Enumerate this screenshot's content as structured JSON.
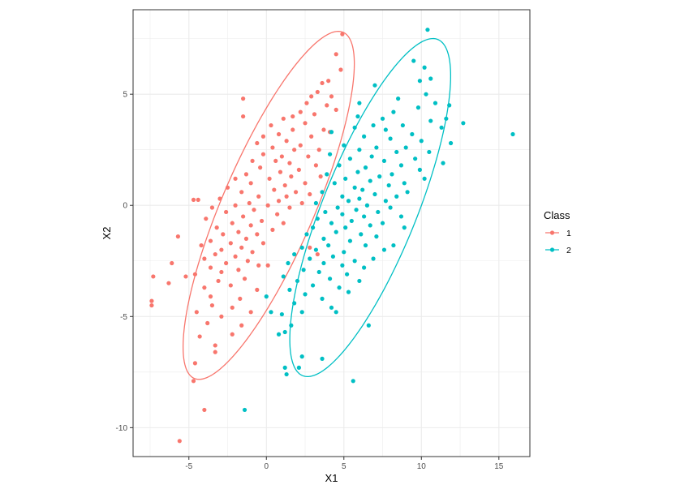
{
  "chart_data": {
    "type": "scatter",
    "xlabel": "X1",
    "ylabel": "X2",
    "xlim": [
      -8.6,
      17.0
    ],
    "ylim": [
      -11.3,
      8.8
    ],
    "x_ticks": [
      -5,
      0,
      5,
      10,
      15
    ],
    "y_ticks": [
      -10,
      -5,
      0,
      5
    ],
    "x_tick_labels": [
      "-5",
      "0",
      "5",
      "10",
      "15"
    ],
    "y_tick_labels": [
      "-10",
      "-5",
      "0",
      "5"
    ],
    "grid": true,
    "legend": {
      "title": "Class",
      "placement": "right",
      "entries": [
        "1",
        "2"
      ]
    },
    "ellipse_note": "Confidence ellipses per class, defined by center and two conjugate half-axes in data units",
    "series": [
      {
        "name": "1",
        "color": "#F8766D",
        "ellipse": {
          "center": [
            0.15,
            0.0
          ],
          "axis_a": [
            4.9,
            7.75
          ],
          "axis_b": [
            -2.55,
            1.1
          ]
        },
        "points": [
          [
            4.9,
            7.7
          ],
          [
            4.5,
            6.8
          ],
          [
            4.8,
            6.1
          ],
          [
            4.0,
            5.6
          ],
          [
            3.6,
            5.5
          ],
          [
            3.3,
            5.1
          ],
          [
            2.9,
            4.9
          ],
          [
            4.2,
            4.9
          ],
          [
            2.6,
            4.6
          ],
          [
            3.9,
            4.5
          ],
          [
            2.2,
            4.2
          ],
          [
            3.1,
            4.1
          ],
          [
            1.7,
            4.0
          ],
          [
            4.5,
            4.3
          ],
          [
            1.1,
            3.9
          ],
          [
            -1.5,
            4.0
          ],
          [
            -1.5,
            4.8
          ],
          [
            2.5,
            3.7
          ],
          [
            0.3,
            3.6
          ],
          [
            3.7,
            3.4
          ],
          [
            1.7,
            3.4
          ],
          [
            0.8,
            3.2
          ],
          [
            4.1,
            3.3
          ],
          [
            -0.2,
            3.1
          ],
          [
            2.9,
            3.1
          ],
          [
            1.3,
            2.9
          ],
          [
            -0.6,
            2.8
          ],
          [
            2.2,
            2.7
          ],
          [
            0.4,
            2.6
          ],
          [
            1.8,
            2.5
          ],
          [
            3.4,
            2.5
          ],
          [
            -0.2,
            2.3
          ],
          [
            1.0,
            2.2
          ],
          [
            2.7,
            2.2
          ],
          [
            -0.9,
            2.0
          ],
          [
            0.6,
            2.0
          ],
          [
            1.5,
            1.9
          ],
          [
            3.2,
            1.8
          ],
          [
            -0.4,
            1.7
          ],
          [
            2.1,
            1.6
          ],
          [
            0.9,
            1.5
          ],
          [
            -1.3,
            1.4
          ],
          [
            1.6,
            1.3
          ],
          [
            3.5,
            1.3
          ],
          [
            -2.0,
            1.2
          ],
          [
            0.2,
            1.2
          ],
          [
            2.5,
            1.0
          ],
          [
            -1.0,
            1.0
          ],
          [
            1.2,
            0.9
          ],
          [
            -2.5,
            0.8
          ],
          [
            0.5,
            0.7
          ],
          [
            1.9,
            0.6
          ],
          [
            -1.6,
            0.6
          ],
          [
            2.8,
            0.5
          ],
          [
            -0.5,
            0.4
          ],
          [
            1.3,
            0.4
          ],
          [
            -3.0,
            0.3
          ],
          [
            0.8,
            0.2
          ],
          [
            -1.1,
            0.1
          ],
          [
            2.3,
            0.1
          ],
          [
            -4.4,
            0.25
          ],
          [
            -4.7,
            0.25
          ],
          [
            -2.0,
            0.0
          ],
          [
            0.1,
            0.0
          ],
          [
            -3.5,
            -0.1
          ],
          [
            1.5,
            -0.1
          ],
          [
            -0.8,
            -0.2
          ],
          [
            -2.6,
            -0.3
          ],
          [
            0.7,
            -0.4
          ],
          [
            -1.5,
            -0.5
          ],
          [
            -3.9,
            -0.6
          ],
          [
            -0.3,
            -0.7
          ],
          [
            1.1,
            -0.8
          ],
          [
            -2.2,
            -0.8
          ],
          [
            -1.0,
            -0.9
          ],
          [
            -3.2,
            -1.0
          ],
          [
            0.4,
            -1.1
          ],
          [
            -1.8,
            -1.2
          ],
          [
            -2.8,
            -1.3
          ],
          [
            -0.6,
            -1.3
          ],
          [
            -5.7,
            -1.4
          ],
          [
            -1.3,
            -1.5
          ],
          [
            -3.6,
            -1.6
          ],
          [
            -2.3,
            -1.7
          ],
          [
            -0.2,
            -1.7
          ],
          [
            -4.2,
            -1.8
          ],
          [
            -1.6,
            -1.9
          ],
          [
            -2.9,
            -2.0
          ],
          [
            -0.9,
            -2.1
          ],
          [
            -3.3,
            -2.2
          ],
          [
            -2.0,
            -2.3
          ],
          [
            -4.0,
            -2.4
          ],
          [
            -1.2,
            -2.5
          ],
          [
            -2.6,
            -2.6
          ],
          [
            -6.1,
            -2.6
          ],
          [
            -3.6,
            -2.8
          ],
          [
            -0.5,
            -2.7
          ],
          [
            -1.8,
            -2.9
          ],
          [
            -2.9,
            -3.0
          ],
          [
            -4.6,
            -3.1
          ],
          [
            -7.3,
            -3.2
          ],
          [
            -5.2,
            -3.2
          ],
          [
            -1.4,
            -3.3
          ],
          [
            -3.1,
            -3.4
          ],
          [
            -6.3,
            -3.5
          ],
          [
            -2.3,
            -3.6
          ],
          [
            -4.0,
            -3.7
          ],
          [
            -0.6,
            -3.8
          ],
          [
            -3.6,
            -4.1
          ],
          [
            -1.7,
            -4.2
          ],
          [
            -7.4,
            -4.3
          ],
          [
            -3.5,
            -4.5
          ],
          [
            -2.2,
            -4.6
          ],
          [
            -7.4,
            -4.5
          ],
          [
            -4.5,
            -4.8
          ],
          [
            -2.9,
            -5.0
          ],
          [
            -3.8,
            -5.3
          ],
          [
            -1.6,
            -5.4
          ],
          [
            -2.2,
            -5.8
          ],
          [
            -4.3,
            -5.9
          ],
          [
            -3.3,
            -6.3
          ],
          [
            -4.6,
            -7.1
          ],
          [
            -3.3,
            -6.6
          ],
          [
            -4.7,
            -7.9
          ],
          [
            -4.0,
            -9.2
          ],
          [
            -5.6,
            -10.6
          ],
          [
            2.8,
            -1.9
          ],
          [
            -1.0,
            -4.8
          ],
          [
            3.3,
            -2.2
          ],
          [
            0.1,
            -2.7
          ]
        ]
      },
      {
        "name": "2",
        "color": "#00BFC4",
        "ellipse": {
          "center": [
            6.7,
            -0.1
          ],
          "axis_a": [
            4.4,
            7.55
          ],
          "axis_b": [
            -2.75,
            0.9
          ]
        },
        "points": [
          [
            10.4,
            7.9
          ],
          [
            9.5,
            6.5
          ],
          [
            10.2,
            6.2
          ],
          [
            10.6,
            5.7
          ],
          [
            9.9,
            5.6
          ],
          [
            7.0,
            5.4
          ],
          [
            10.3,
            5.0
          ],
          [
            10.9,
            4.6
          ],
          [
            8.5,
            4.8
          ],
          [
            11.8,
            4.5
          ],
          [
            6.0,
            4.6
          ],
          [
            9.8,
            4.4
          ],
          [
            8.2,
            4.2
          ],
          [
            5.9,
            4.0
          ],
          [
            7.5,
            3.9
          ],
          [
            11.6,
            3.9
          ],
          [
            10.6,
            3.8
          ],
          [
            12.7,
            3.7
          ],
          [
            6.9,
            3.6
          ],
          [
            8.8,
            3.6
          ],
          [
            5.7,
            3.5
          ],
          [
            11.3,
            3.5
          ],
          [
            15.9,
            3.2
          ],
          [
            7.7,
            3.4
          ],
          [
            4.2,
            3.3
          ],
          [
            9.4,
            3.2
          ],
          [
            6.3,
            3.1
          ],
          [
            8.0,
            3.0
          ],
          [
            10.0,
            2.9
          ],
          [
            11.9,
            2.8
          ],
          [
            5.0,
            2.7
          ],
          [
            7.1,
            2.6
          ],
          [
            9.0,
            2.6
          ],
          [
            6.0,
            2.5
          ],
          [
            8.4,
            2.4
          ],
          [
            10.5,
            2.4
          ],
          [
            4.1,
            2.3
          ],
          [
            6.8,
            2.2
          ],
          [
            9.6,
            2.1
          ],
          [
            5.4,
            2.1
          ],
          [
            7.6,
            2.0
          ],
          [
            11.4,
            1.9
          ],
          [
            8.7,
            1.8
          ],
          [
            4.7,
            1.8
          ],
          [
            6.4,
            1.7
          ],
          [
            9.9,
            1.6
          ],
          [
            5.9,
            1.5
          ],
          [
            8.1,
            1.4
          ],
          [
            3.9,
            1.4
          ],
          [
            7.3,
            1.3
          ],
          [
            10.2,
            1.2
          ],
          [
            5.1,
            1.2
          ],
          [
            6.7,
            1.1
          ],
          [
            8.9,
            1.0
          ],
          [
            4.4,
            1.0
          ],
          [
            7.9,
            0.9
          ],
          [
            5.7,
            0.8
          ],
          [
            6.2,
            0.7
          ],
          [
            9.1,
            0.6
          ],
          [
            3.6,
            0.6
          ],
          [
            7.0,
            0.5
          ],
          [
            4.9,
            0.4
          ],
          [
            8.4,
            0.4
          ],
          [
            6.0,
            0.3
          ],
          [
            5.3,
            0.2
          ],
          [
            7.7,
            0.2
          ],
          [
            3.2,
            0.1
          ],
          [
            6.5,
            0.0
          ],
          [
            4.6,
            -0.1
          ],
          [
            8.0,
            -0.1
          ],
          [
            5.8,
            -0.2
          ],
          [
            3.8,
            -0.3
          ],
          [
            7.2,
            -0.3
          ],
          [
            4.9,
            -0.4
          ],
          [
            6.3,
            -0.5
          ],
          [
            8.7,
            -0.5
          ],
          [
            3.3,
            -0.6
          ],
          [
            5.5,
            -0.7
          ],
          [
            7.5,
            -0.8
          ],
          [
            4.2,
            -0.8
          ],
          [
            6.7,
            -0.9
          ],
          [
            3.0,
            -1.0
          ],
          [
            5.1,
            -1.0
          ],
          [
            8.9,
            -1.0
          ],
          [
            4.5,
            -1.2
          ],
          [
            6.1,
            -1.3
          ],
          [
            2.6,
            -1.3
          ],
          [
            7.1,
            -1.4
          ],
          [
            3.7,
            -1.5
          ],
          [
            5.4,
            -1.6
          ],
          [
            4.0,
            -1.8
          ],
          [
            6.4,
            -1.8
          ],
          [
            2.3,
            -1.9
          ],
          [
            8.2,
            -1.8
          ],
          [
            3.2,
            -2.0
          ],
          [
            5.0,
            -2.1
          ],
          [
            7.6,
            -2.0
          ],
          [
            1.8,
            -2.2
          ],
          [
            4.3,
            -2.3
          ],
          [
            6.9,
            -2.4
          ],
          [
            2.8,
            -2.4
          ],
          [
            5.7,
            -2.5
          ],
          [
            3.7,
            -2.6
          ],
          [
            1.4,
            -2.6
          ],
          [
            4.9,
            -2.7
          ],
          [
            6.3,
            -2.8
          ],
          [
            2.4,
            -2.9
          ],
          [
            3.4,
            -3.0
          ],
          [
            5.2,
            -3.1
          ],
          [
            1.1,
            -3.2
          ],
          [
            4.1,
            -3.3
          ],
          [
            2.0,
            -3.4
          ],
          [
            6.0,
            -3.4
          ],
          [
            3.0,
            -3.6
          ],
          [
            4.7,
            -3.7
          ],
          [
            1.5,
            -3.8
          ],
          [
            2.5,
            -4.0
          ],
          [
            5.3,
            -3.9
          ],
          [
            0.0,
            -4.1
          ],
          [
            3.6,
            -4.2
          ],
          [
            1.8,
            -4.4
          ],
          [
            4.2,
            -4.6
          ],
          [
            2.3,
            -4.8
          ],
          [
            1.0,
            -4.9
          ],
          [
            0.3,
            -4.8
          ],
          [
            4.5,
            -4.8
          ],
          [
            1.6,
            -5.4
          ],
          [
            6.6,
            -5.4
          ],
          [
            1.2,
            -5.7
          ],
          [
            0.8,
            -5.8
          ],
          [
            2.3,
            -6.8
          ],
          [
            3.6,
            -6.9
          ],
          [
            2.1,
            -7.3
          ],
          [
            1.2,
            -7.3
          ],
          [
            1.3,
            -7.6
          ],
          [
            5.6,
            -7.9
          ],
          [
            -1.4,
            -9.2
          ]
        ]
      }
    ]
  }
}
